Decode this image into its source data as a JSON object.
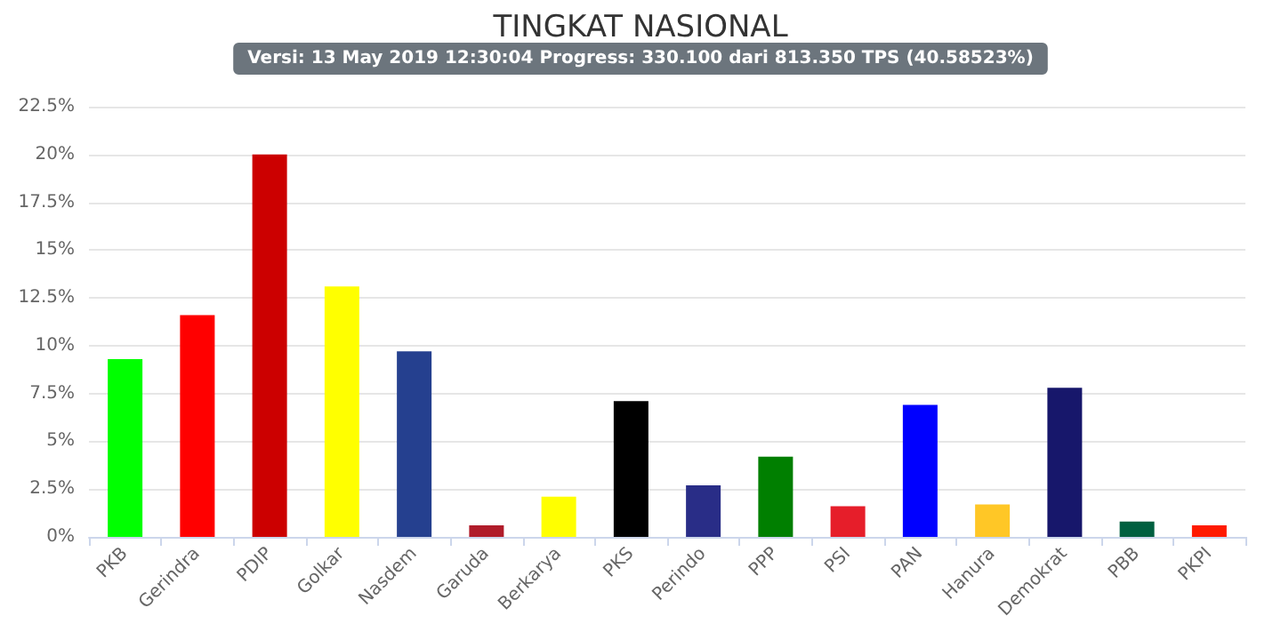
{
  "chart_data": {
    "type": "bar",
    "title": "TINGKAT NASIONAL",
    "subtitle": "Versi: 13 May 2019 12:30:04 Progress: 330.100 dari 813.350 TPS (40.58523%)",
    "categories": [
      "PKB",
      "Gerindra",
      "PDIP",
      "Golkar",
      "Nasdem",
      "Garuda",
      "Berkarya",
      "PKS",
      "Perindo",
      "PPP",
      "PSI",
      "PAN",
      "Hanura",
      "Demokrat",
      "PBB",
      "PKPI"
    ],
    "values": [
      9.3,
      11.6,
      20.0,
      13.1,
      9.7,
      0.6,
      2.1,
      7.1,
      2.7,
      4.2,
      1.6,
      6.9,
      1.7,
      7.8,
      0.8,
      0.6
    ],
    "colors": [
      "#00ff00",
      "#ff0000",
      "#cc0000",
      "#ffff00",
      "#25408f",
      "#b01c2a",
      "#ffff00",
      "#000000",
      "#292d87",
      "#007f00",
      "#e61e2a",
      "#0000ff",
      "#ffc726",
      "#17176b",
      "#006040",
      "#ff1a00"
    ],
    "ylim": [
      0,
      22.5
    ],
    "yticks": [
      {
        "value": 0,
        "label": "0%"
      },
      {
        "value": 2.5,
        "label": "2.5%"
      },
      {
        "value": 5,
        "label": "5%"
      },
      {
        "value": 7.5,
        "label": "7.5%"
      },
      {
        "value": 10,
        "label": "10%"
      },
      {
        "value": 12.5,
        "label": "12.5%"
      },
      {
        "value": 15,
        "label": "15%"
      },
      {
        "value": 17.5,
        "label": "17.5%"
      },
      {
        "value": 20,
        "label": "20%"
      },
      {
        "value": 22.5,
        "label": "22.5%"
      }
    ],
    "grid": "y"
  }
}
